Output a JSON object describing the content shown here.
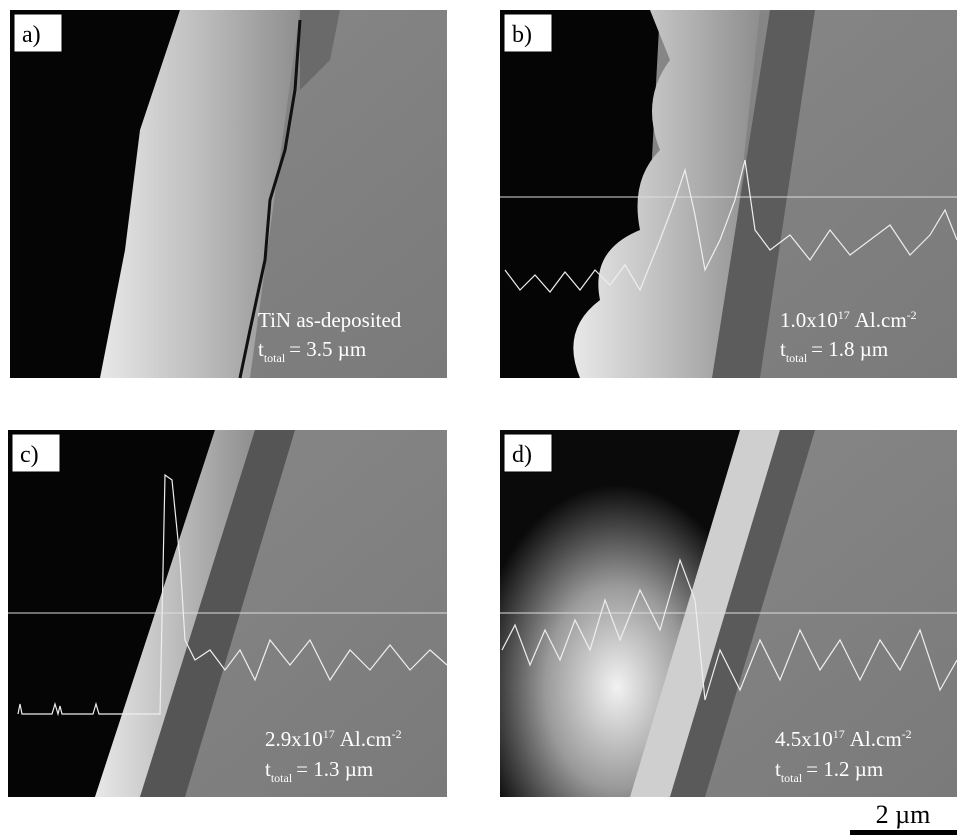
{
  "panels": [
    {
      "label": "a)",
      "caption": "TiN as-deposited",
      "thickness": {
        "symbol": "t",
        "subscript": "total",
        "value": "= 3.5 µm"
      }
    },
    {
      "label": "b)",
      "dose": {
        "base": "1.0x10",
        "exp": "17",
        "unit": "Al.cm",
        "unit_exp": "-2"
      },
      "thickness": {
        "symbol": "t",
        "subscript": "total",
        "value": "= 1.8 µm"
      }
    },
    {
      "label": "c)",
      "dose": {
        "base": "2.9x10",
        "exp": "17",
        "unit": "Al.cm",
        "unit_exp": "-2"
      },
      "thickness": {
        "symbol": "t",
        "subscript": "total",
        "value": "= 1.3 µm"
      }
    },
    {
      "label": "d)",
      "dose": {
        "base": "4.5x10",
        "exp": "17",
        "unit": "Al.cm",
        "unit_exp": "-2"
      },
      "thickness": {
        "symbol": "t",
        "subscript": "total",
        "value": "= 1.2 µm"
      }
    }
  ],
  "scale_bar": "2 µm"
}
